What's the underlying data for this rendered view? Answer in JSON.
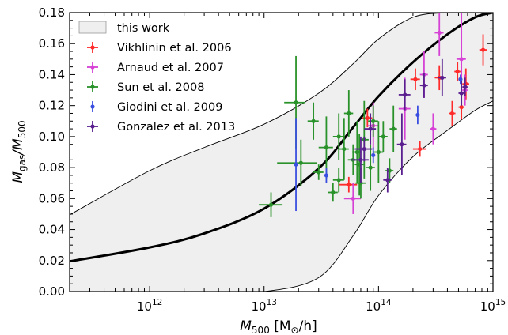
{
  "chart_data": {
    "type": "scatter",
    "xscale": "log",
    "xlim": [
      200000000000.0,
      1000000000000000.0
    ],
    "ylim": [
      0.0,
      0.18
    ],
    "xticks": [
      {
        "value": 1000000000000.0,
        "label_base": "10",
        "label_exp": "12"
      },
      {
        "value": 10000000000000.0,
        "label_base": "10",
        "label_exp": "13"
      },
      {
        "value": 100000000000000.0,
        "label_base": "10",
        "label_exp": "14"
      },
      {
        "value": 1000000000000000.0,
        "label_base": "10",
        "label_exp": "15"
      }
    ],
    "yticks": [
      "0.00",
      "0.02",
      "0.04",
      "0.06",
      "0.08",
      "0.10",
      "0.12",
      "0.14",
      "0.16",
      "0.18"
    ],
    "xlabel": {
      "main": "M",
      "sub": "500",
      "unit_open": " [M",
      "unit_sub": "⊙",
      "unit_close": "/h]"
    },
    "ylabel": {
      "num": "M",
      "num_sub": "gas",
      "slash": "/M",
      "den_sub": "500"
    },
    "legend_position": "top-left",
    "model": {
      "name": "this work",
      "fill": "#efefef",
      "line_color": "#000000",
      "x": [
        200000000000.0,
        1000000000000.0,
        3000000000000.0,
        10000000000000.0,
        30000000000000.0,
        60000000000000.0,
        100000000000000.0,
        200000000000000.0,
        400000000000000.0,
        700000000000000.0,
        1000000000000000.0
      ],
      "mean": [
        0.0195,
        0.0285,
        0.0375,
        0.0535,
        0.0795,
        0.106,
        0.126,
        0.148,
        0.166,
        0.177,
        0.18
      ],
      "lower": [
        0.0,
        0.0,
        0.0,
        0.0,
        0.009,
        0.036,
        0.062,
        0.087,
        0.104,
        0.117,
        0.123
      ],
      "upper": [
        0.0495,
        0.078,
        0.093,
        0.108,
        0.128,
        0.147,
        0.163,
        0.177,
        0.18,
        0.18,
        0.18
      ]
    },
    "series": [
      {
        "name": "Vikhlinin et al. 2006",
        "color": "#ff2a2a",
        "points": [
          {
            "x": 55000000000000.0,
            "y": 0.069,
            "xerr": [
              10000000000000.0,
              10000000000000.0
            ],
            "yerr": [
              0.005,
              0.005
            ]
          },
          {
            "x": 80000000000000.0,
            "y": 0.112,
            "xerr": [
              8000000000000.0,
              8000000000000.0
            ],
            "yerr": [
              0.006,
              0.006
            ]
          },
          {
            "x": 230000000000000.0,
            "y": 0.092,
            "xerr": [
              30000000000000.0,
              30000000000000.0
            ],
            "yerr": [
              0.005,
              0.005
            ]
          },
          {
            "x": 210000000000000.0,
            "y": 0.137,
            "xerr": [
              20000000000000.0,
              20000000000000.0
            ],
            "yerr": [
              0.007,
              0.007
            ]
          },
          {
            "x": 440000000000000.0,
            "y": 0.115,
            "xerr": [
              30000000000000.0,
              30000000000000.0
            ],
            "yerr": [
              0.008,
              0.008
            ]
          },
          {
            "x": 530000000000000.0,
            "y": 0.119,
            "xerr": [
              30000000000000.0,
              30000000000000.0
            ],
            "yerr": [
              0.008,
              0.008
            ]
          },
          {
            "x": 580000000000000.0,
            "y": 0.134,
            "xerr": [
              40000000000000.0,
              40000000000000.0
            ],
            "yerr": [
              0.01,
              0.01
            ]
          },
          {
            "x": 340000000000000.0,
            "y": 0.138,
            "xerr": [
              30000000000000.0,
              30000000000000.0
            ],
            "yerr": [
              0.008,
              0.008
            ]
          },
          {
            "x": 820000000000000.0,
            "y": 0.156,
            "xerr": [
              60000000000000.0,
              60000000000000.0
            ],
            "yerr": [
              0.01,
              0.01
            ]
          },
          {
            "x": 490000000000000.0,
            "y": 0.142,
            "xerr": [
              30000000000000.0,
              30000000000000.0
            ],
            "yerr": [
              0.006,
              0.006
            ]
          }
        ]
      },
      {
        "name": "Arnaud et al. 2007",
        "color": "#d642d6",
        "points": [
          {
            "x": 60000000000000.0,
            "y": 0.06,
            "xerr": [
              10000000000000.0,
              10000000000000.0
            ],
            "yerr": [
              0.01,
              0.01
            ]
          },
          {
            "x": 90000000000000.0,
            "y": 0.107,
            "xerr": [
              10000000000000.0,
              10000000000000.0
            ],
            "yerr": [
              0.015,
              0.015
            ]
          },
          {
            "x": 170000000000000.0,
            "y": 0.118,
            "xerr": [
              20000000000000.0,
              20000000000000.0
            ],
            "yerr": [
              0.02,
              0.02
            ]
          },
          {
            "x": 250000000000000.0,
            "y": 0.14,
            "xerr": [
              20000000000000.0,
              20000000000000.0
            ],
            "yerr": [
              0.015,
              0.015
            ]
          },
          {
            "x": 340000000000000.0,
            "y": 0.167,
            "xerr": [
              30000000000000.0,
              30000000000000.0
            ],
            "yerr": [
              0.015,
              0.015
            ]
          },
          {
            "x": 530000000000000.0,
            "y": 0.15,
            "xerr": [
              50000000000000.0,
              50000000000000.0
            ],
            "yerr": [
              0.03,
              0.03
            ]
          },
          {
            "x": 300000000000000.0,
            "y": 0.105,
            "xerr": [
              20000000000000.0,
              20000000000000.0
            ],
            "yerr": [
              0.01,
              0.01
            ]
          },
          {
            "x": 570000000000000.0,
            "y": 0.13,
            "xerr": [
              30000000000000.0,
              30000000000000.0
            ],
            "yerr": [
              0.01,
              0.01
            ]
          }
        ]
      },
      {
        "name": "Sun et al. 2008",
        "color": "#2a922a",
        "points": [
          {
            "x": 11500000000000.0,
            "y": 0.056,
            "xerr": [
              2500000000000.0,
              3000000000000.0
            ],
            "yerr": [
              0.008,
              0.008
            ]
          },
          {
            "x": 19000000000000.0,
            "y": 0.122,
            "xerr": [
              4000000000000.0,
              4000000000000.0
            ],
            "yerr": [
              0.03,
              0.03
            ]
          },
          {
            "x": 21000000000000.0,
            "y": 0.083,
            "xerr": [
              8000000000000.0,
              8000000000000.0
            ],
            "yerr": [
              0.015,
              0.015
            ]
          },
          {
            "x": 27000000000000.0,
            "y": 0.11,
            "xerr": [
              3000000000000.0,
              3000000000000.0
            ],
            "yerr": [
              0.012,
              0.012
            ]
          },
          {
            "x": 30000000000000.0,
            "y": 0.077,
            "xerr": [
              3000000000000.0,
              3000000000000.0
            ],
            "yerr": [
              0.005,
              0.005
            ]
          },
          {
            "x": 35000000000000.0,
            "y": 0.093,
            "xerr": [
              5000000000000.0,
              5000000000000.0
            ],
            "yerr": [
              0.02,
              0.02
            ]
          },
          {
            "x": 40000000000000.0,
            "y": 0.064,
            "xerr": [
              4000000000000.0,
              4000000000000.0
            ],
            "yerr": [
              0.006,
              0.006
            ]
          },
          {
            "x": 45000000000000.0,
            "y": 0.1,
            "xerr": [
              5000000000000.0,
              5000000000000.0
            ],
            "yerr": [
              0.015,
              0.015
            ]
          },
          {
            "x": 50000000000000.0,
            "y": 0.092,
            "xerr": [
              5000000000000.0,
              5000000000000.0
            ],
            "yerr": [
              0.02,
              0.02
            ]
          },
          {
            "x": 55000000000000.0,
            "y": 0.115,
            "xerr": [
              5000000000000.0,
              5000000000000.0
            ],
            "yerr": [
              0.015,
              0.015
            ]
          },
          {
            "x": 60000000000000.0,
            "y": 0.085,
            "xerr": [
              6000000000000.0,
              6000000000000.0
            ],
            "yerr": [
              0.01,
              0.01
            ]
          },
          {
            "x": 65000000000000.0,
            "y": 0.09,
            "xerr": [
              6000000000000.0,
              6000000000000.0
            ],
            "yerr": [
              0.02,
              0.02
            ]
          },
          {
            "x": 70000000000000.0,
            "y": 0.07,
            "xerr": [
              7000000000000.0,
              7000000000000.0
            ],
            "yerr": [
              0.01,
              0.01
            ]
          },
          {
            "x": 75000000000000.0,
            "y": 0.098,
            "xerr": [
              7000000000000.0,
              7000000000000.0
            ],
            "yerr": [
              0.025,
              0.025
            ]
          },
          {
            "x": 85000000000000.0,
            "y": 0.08,
            "xerr": [
              8000000000000.0,
              8000000000000.0
            ],
            "yerr": [
              0.015,
              0.015
            ]
          },
          {
            "x": 90000000000000.0,
            "y": 0.11,
            "xerr": [
              9000000000000.0,
              9000000000000.0
            ],
            "yerr": [
              0.01,
              0.01
            ]
          },
          {
            "x": 100000000000000.0,
            "y": 0.09,
            "xerr": [
              10000000000000.0,
              10000000000000.0
            ],
            "yerr": [
              0.02,
              0.02
            ]
          },
          {
            "x": 110000000000000.0,
            "y": 0.1,
            "xerr": [
              10000000000000.0,
              10000000000000.0
            ],
            "yerr": [
              0.01,
              0.01
            ]
          },
          {
            "x": 125000000000000.0,
            "y": 0.078,
            "xerr": [
              10000000000000.0,
              10000000000000.0
            ],
            "yerr": [
              0.008,
              0.008
            ]
          },
          {
            "x": 135000000000000.0,
            "y": 0.105,
            "xerr": [
              10000000000000.0,
              10000000000000.0
            ],
            "yerr": [
              0.015,
              0.015
            ]
          },
          {
            "x": 45000000000000.0,
            "y": 0.072,
            "xerr": [
              5000000000000.0,
              5000000000000.0
            ],
            "yerr": [
              0.008,
              0.008
            ]
          },
          {
            "x": 68000000000000.0,
            "y": 0.082,
            "xerr": [
              6000000000000.0,
              6000000000000.0
            ],
            "yerr": [
              0.02,
              0.02
            ]
          }
        ]
      },
      {
        "name": "Giodini et al. 2009",
        "color": "#3a4fe0",
        "points": [
          {
            "x": 19000000000000.0,
            "y": 0.082,
            "xerr": [
              0,
              0
            ],
            "yerr": [
              0.03,
              0.03
            ]
          },
          {
            "x": 35000000000000.0,
            "y": 0.075,
            "xerr": [
              0,
              0
            ],
            "yerr": [
              0.005,
              0.005
            ]
          },
          {
            "x": 90000000000000.0,
            "y": 0.088,
            "xerr": [
              0,
              0
            ],
            "yerr": [
              0.005,
              0.005
            ]
          },
          {
            "x": 220000000000000.0,
            "y": 0.114,
            "xerr": [
              0,
              0
            ],
            "yerr": [
              0.006,
              0.006
            ]
          },
          {
            "x": 520000000000000.0,
            "y": 0.137,
            "xerr": [
              0,
              0
            ],
            "yerr": [
              0.003,
              0.003
            ]
          }
        ]
      },
      {
        "name": "Gonzalez et al. 2013",
        "color": "#5a1f8f",
        "points": [
          {
            "x": 75000000000000.0,
            "y": 0.092,
            "xerr": [
              13000000000000.0,
              13000000000000.0
            ],
            "yerr": [
              0.008,
              0.008
            ]
          },
          {
            "x": 85000000000000.0,
            "y": 0.105,
            "xerr": [
              10000000000000.0,
              10000000000000.0
            ],
            "yerr": [
              0.01,
              0.01
            ]
          },
          {
            "x": 160000000000000.0,
            "y": 0.095,
            "xerr": [
              15000000000000.0,
              15000000000000.0
            ],
            "yerr": [
              0.02,
              0.02
            ]
          },
          {
            "x": 170000000000000.0,
            "y": 0.127,
            "xerr": [
              20000000000000.0,
              20000000000000.0
            ],
            "yerr": [
              0.01,
              0.01
            ]
          },
          {
            "x": 250000000000000.0,
            "y": 0.133,
            "xerr": [
              20000000000000.0,
              20000000000000.0
            ],
            "yerr": [
              0.008,
              0.008
            ]
          },
          {
            "x": 360000000000000.0,
            "y": 0.138,
            "xerr": [
              30000000000000.0,
              30000000000000.0
            ],
            "yerr": [
              0.012,
              0.012
            ]
          },
          {
            "x": 530000000000000.0,
            "y": 0.128,
            "xerr": [
              30000000000000.0,
              30000000000000.0
            ],
            "yerr": [
              0.008,
              0.008
            ]
          },
          {
            "x": 570000000000000.0,
            "y": 0.132,
            "xerr": [
              30000000000000.0,
              30000000000000.0
            ],
            "yerr": [
              0.006,
              0.006
            ]
          },
          {
            "x": 120000000000000.0,
            "y": 0.072,
            "xerr": [
              10000000000000.0,
              10000000000000.0
            ],
            "yerr": [
              0.008,
              0.008
            ]
          },
          {
            "x": 70000000000000.0,
            "y": 0.085,
            "xerr": [
              12000000000000.0,
              12000000000000.0
            ],
            "yerr": [
              0.015,
              0.015
            ]
          }
        ]
      }
    ]
  }
}
